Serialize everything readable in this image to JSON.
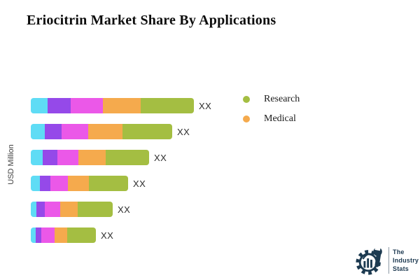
{
  "title": "Eriocitrin Market Share By Applications",
  "chart_data": {
    "type": "bar",
    "orientation": "horizontal",
    "stacked": true,
    "title": "Eriocitrin Market Share By Applications",
    "xlabel": "",
    "ylabel": "USD Million",
    "value_axis_visible": false,
    "grid": false,
    "legend_position": "right",
    "note": "numeric values masked as XX in source image; segment values are relative pixel widths",
    "segment_colors": [
      "#5FDCF5",
      "#9549E9",
      "#EB58E8",
      "#F5AA4D",
      "#A4BE42"
    ],
    "legend": [
      {
        "label": "Research",
        "color": "#A4BE42"
      },
      {
        "label": "Medical",
        "color": "#F5AA4D"
      }
    ],
    "rows": [
      {
        "label": "XX",
        "segments": [
          24,
          33,
          46,
          54,
          76
        ]
      },
      {
        "label": "XX",
        "segments": [
          20,
          24,
          38,
          49,
          71
        ]
      },
      {
        "label": "XX",
        "segments": [
          17,
          21,
          30,
          39,
          62
        ]
      },
      {
        "label": "XX",
        "segments": [
          13,
          15,
          25,
          30,
          56
        ]
      },
      {
        "label": "XX",
        "segments": [
          8,
          12,
          22,
          25,
          50
        ]
      },
      {
        "label": "XX",
        "segments": [
          7,
          8,
          19,
          18,
          41
        ]
      }
    ]
  },
  "legend": {
    "items": [
      {
        "label": "Research",
        "color": "#A4BE42"
      },
      {
        "label": "Medical",
        "color": "#F5AA4D"
      }
    ]
  },
  "logo": {
    "line1": "The",
    "line2": "Industry",
    "line3": "Stats",
    "color": "#1C3A50"
  }
}
